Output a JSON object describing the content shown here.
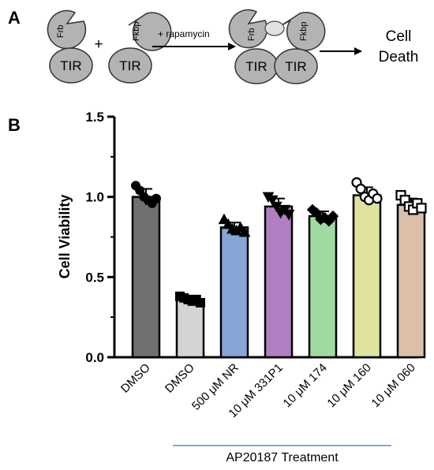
{
  "panel_a": {
    "letter": "A",
    "frb": "Frb",
    "fkbp": "Fkbp",
    "tir": "TIR",
    "plus": "+",
    "arrow_label": "+ rapamycin",
    "outcome_line1": "Cell",
    "outcome_line2": "Death"
  },
  "panel_b": {
    "letter": "B"
  },
  "chart_data": {
    "type": "bar",
    "title": "",
    "ylabel": "Cell Viability",
    "xlabel": "",
    "ylim": [
      0,
      1.5
    ],
    "yticks": [
      "0.0",
      "0.5",
      "1.0",
      "1.5"
    ],
    "group_label": "AP20187 Treatment",
    "categories": [
      "DMSO",
      "DMSO",
      "500 μM NR",
      "10 μM 331P1",
      "10 μM 174",
      "10 μM 160",
      "10 μM 060"
    ],
    "values": [
      1.0,
      0.36,
      0.81,
      0.94,
      0.88,
      1.01,
      0.95
    ],
    "errors": [
      0.05,
      0.02,
      0.03,
      0.05,
      0.03,
      0.05,
      0.04
    ],
    "colors": [
      "#707070",
      "#d4d4d4",
      "#87a6d6",
      "#b07fc2",
      "#9fdba0",
      "#e0e2a0",
      "#dbbfa8"
    ],
    "marker_shapes": [
      "circle",
      "square",
      "triangle",
      "triangle-down",
      "diamond",
      "open-circle",
      "open-square"
    ],
    "points": [
      [
        1.07,
        1.04,
        1.0,
        0.98,
        0.96,
        0.99
      ],
      [
        0.38,
        0.37,
        0.36,
        0.35,
        0.36,
        0.34
      ],
      [
        0.86,
        0.83,
        0.8,
        0.79,
        0.81,
        0.78
      ],
      [
        1.0,
        0.98,
        0.94,
        0.9,
        0.92,
        0.89
      ],
      [
        0.92,
        0.9,
        0.86,
        0.87,
        0.85,
        0.88
      ],
      [
        1.09,
        1.05,
        1.0,
        0.98,
        1.02,
        0.99
      ],
      [
        1.01,
        0.98,
        0.94,
        0.92,
        0.96,
        0.93
      ]
    ]
  }
}
